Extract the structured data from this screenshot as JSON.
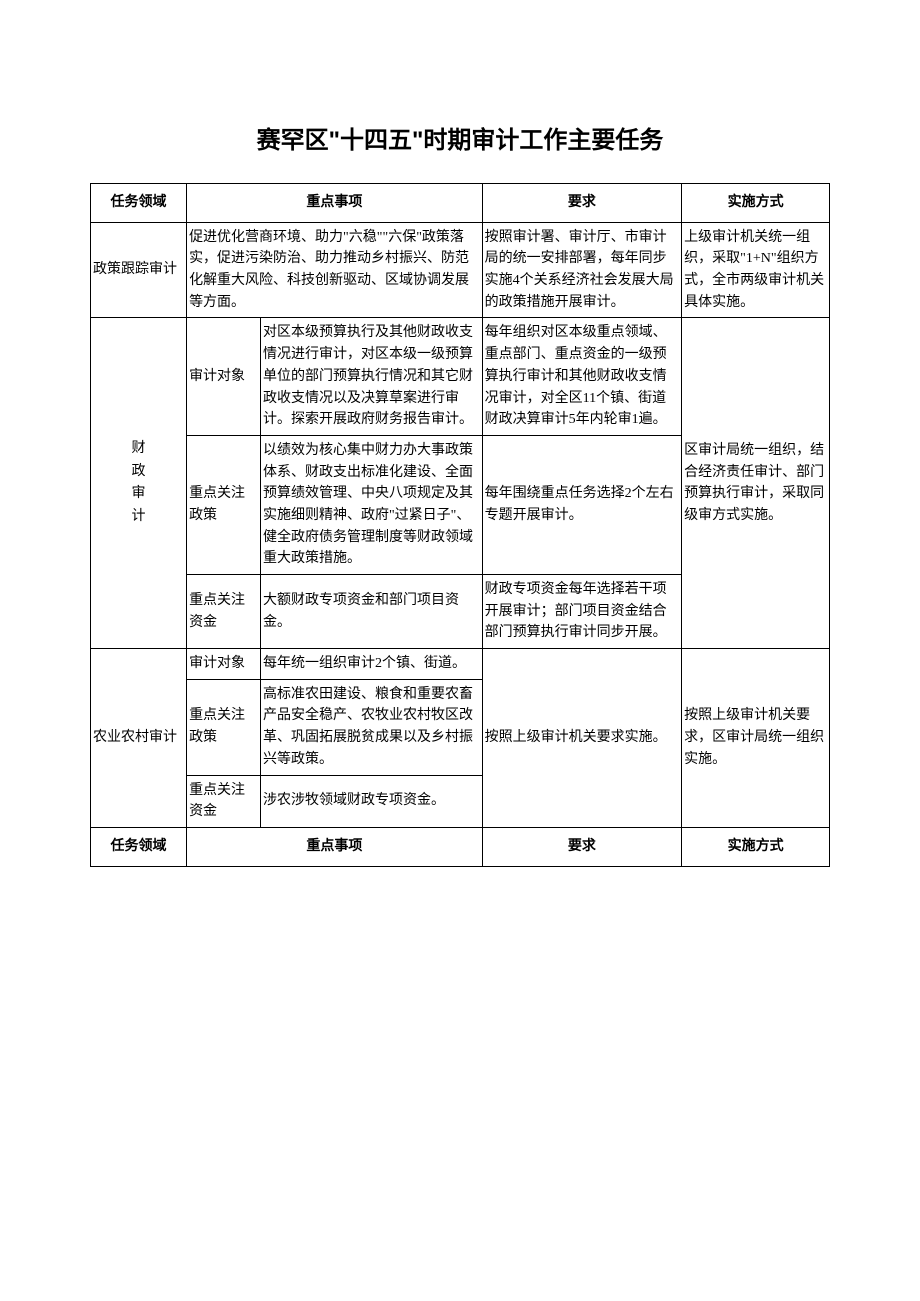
{
  "title": "赛罕区\"十四五\"时期审计工作主要任务",
  "headers": {
    "col1": "任务领域",
    "col2": "重点事项",
    "col3": "要求",
    "col4": "实施方式"
  },
  "rows": {
    "policy_tracking": {
      "field": "政策跟踪审计",
      "key_matters": "促进优化营商环境、助力\"六稳\"\"六保\"政策落实，促进污染防治、助力推动乡村振兴、防范化解重大风险、科技创新驱动、区域协调发展等方面。",
      "requirement": "按照审计署、审计厅、市审计局的统一安排部署，每年同步实施4个关系经济社会发展大局的政策措施开展审计。",
      "implementation": "上级审计机关统一组织，采取\"1+N\"组织方式，全市两级审计机关具体实施。"
    },
    "fiscal": {
      "field": "财政审计",
      "sub1_label": "审计对象",
      "sub1_matter": "对区本级预算执行及其他财政收支情况进行审计，对区本级一级预算单位的部门预算执行情况和其它财政收支情况以及决算草案进行审计。探索开展政府财务报告审计。",
      "sub1_req": "每年组织对区本级重点领域、重点部门、重点资金的一级预算执行审计和其他财政收支情况审计，对全区11个镇、街道财政决算审计5年内轮审1遍。",
      "sub2_label": "重点关注政策",
      "sub2_matter": "以绩效为核心集中财力办大事政策体系、财政支出标准化建设、全面预算绩效管理、中央八项规定及其实施细则精神、政府\"过紧日子\"、健全政府债务管理制度等财政领域重大政策措施。",
      "sub2_req": "每年围绕重点任务选择2个左右专题开展审计。",
      "sub3_label": "重点关注资金",
      "sub3_matter": "大额财政专项资金和部门项目资金。",
      "sub3_req": "财政专项资金每年选择若干项开展审计；部门项目资金结合部门预算执行审计同步开展。",
      "implementation": "区审计局统一组织，结合经济责任审计、部门预算执行审计，采取同级审方式实施。"
    },
    "agri": {
      "field": "农业农村审计",
      "sub1_label": "审计对象",
      "sub1_matter": "每年统一组织审计2个镇、街道。",
      "sub2_label": "重点关注政策",
      "sub2_matter": "高标准农田建设、粮食和重要农畜产品安全稳产、农牧业农村牧区改革、巩固拓展脱贫成果以及乡村振兴等政策。",
      "sub3_label": "重点关注资金",
      "sub3_matter": "涉农涉牧领域财政专项资金。",
      "requirement": "按照上级审计机关要求实施。",
      "implementation": "按照上级审计机关要求，区审计局统一组织实施。"
    }
  }
}
